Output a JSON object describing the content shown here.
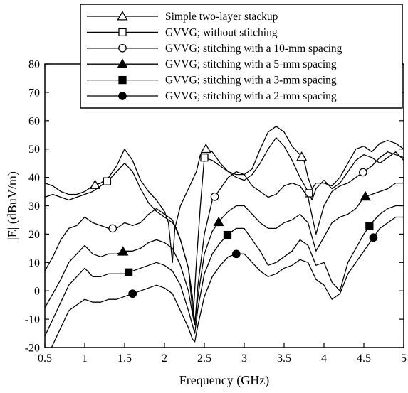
{
  "chart_data": {
    "type": "line",
    "xlabel": "Frequency (GHz)",
    "ylabel": "|E| (dBuV/m)",
    "xlim": [
      0.5,
      5
    ],
    "ylim": [
      -20,
      80
    ],
    "x_ticks": [
      "0.5",
      "1",
      "1.5",
      "2",
      "2.5",
      "3",
      "3.5",
      "4",
      "4.5",
      "5"
    ],
    "y_ticks": [
      "80",
      "70",
      "60",
      "50",
      "40",
      "30",
      "20",
      "10",
      "0",
      "-10",
      "-20"
    ],
    "grid": false,
    "legend_position": "top-right",
    "series": [
      {
        "name": "Simple two-layer stackup",
        "marker": "open-triangle",
        "marker_x": [
          1.13,
          2.52,
          3.72
        ],
        "x": [
          0.5,
          0.6,
          0.7,
          0.8,
          0.9,
          1.0,
          1.1,
          1.2,
          1.3,
          1.4,
          1.5,
          1.6,
          1.7,
          1.8,
          1.9,
          2.0,
          2.05,
          2.1,
          2.13,
          2.2,
          2.3,
          2.4,
          2.45,
          2.5,
          2.52,
          2.6,
          2.7,
          2.8,
          2.9,
          3.0,
          3.1,
          3.2,
          3.3,
          3.4,
          3.5,
          3.6,
          3.7,
          3.75,
          3.8,
          3.85,
          3.9,
          4.0,
          4.1,
          4.2,
          4.3,
          4.4,
          4.5,
          4.6,
          4.7,
          4.8,
          4.9,
          5.0
        ],
        "y": [
          38,
          37,
          35,
          34,
          34,
          35,
          37,
          38,
          40,
          44,
          50,
          46,
          39,
          35,
          32,
          28,
          24,
          10,
          22,
          30,
          36,
          42,
          48,
          50,
          50,
          49,
          45,
          42,
          41,
          41,
          43,
          50,
          56,
          58,
          56,
          51,
          48,
          46,
          40,
          36,
          38,
          38,
          37,
          40,
          45,
          50,
          51,
          49,
          52,
          53,
          52,
          50
        ]
      },
      {
        "name": "GVVG; without stitching",
        "marker": "open-square",
        "marker_x": [
          1.28,
          2.5,
          3.81
        ],
        "x": [
          0.5,
          0.6,
          0.7,
          0.8,
          0.9,
          1.0,
          1.1,
          1.2,
          1.3,
          1.4,
          1.5,
          1.6,
          1.7,
          1.8,
          1.9,
          2.0,
          2.1,
          2.15,
          2.2,
          2.3,
          2.36,
          2.4,
          2.45,
          2.5,
          2.6,
          2.7,
          2.8,
          2.9,
          3.0,
          3.1,
          3.2,
          3.3,
          3.4,
          3.5,
          3.6,
          3.7,
          3.8,
          3.85,
          3.9,
          4.0,
          4.1,
          4.2,
          4.3,
          4.4,
          4.5,
          4.6,
          4.7,
          4.8,
          4.9,
          5.0
        ],
        "y": [
          33,
          34,
          33,
          32,
          33,
          34,
          35,
          37,
          39,
          42,
          45,
          42,
          36,
          31,
          28,
          26,
          24,
          22,
          18,
          8,
          -9,
          10,
          30,
          47,
          46,
          44,
          42,
          40,
          39,
          41,
          45,
          50,
          54,
          51,
          46,
          40,
          35,
          32,
          36,
          39,
          36,
          38,
          42,
          46,
          48,
          47,
          45,
          47,
          49,
          46
        ]
      },
      {
        "name": "GVVG; stitching with a 10-mm spacing",
        "marker": "open-circle",
        "marker_x": [
          1.35,
          2.63,
          4.49
        ],
        "x": [
          0.5,
          0.6,
          0.7,
          0.8,
          0.9,
          1.0,
          1.1,
          1.2,
          1.3,
          1.4,
          1.5,
          1.6,
          1.7,
          1.8,
          1.9,
          2.0,
          2.1,
          2.2,
          2.3,
          2.35,
          2.38,
          2.42,
          2.5,
          2.6,
          2.7,
          2.8,
          2.9,
          3.0,
          3.1,
          3.2,
          3.3,
          3.4,
          3.5,
          3.6,
          3.7,
          3.8,
          3.9,
          4.0,
          4.1,
          4.2,
          4.3,
          4.4,
          4.5,
          4.6,
          4.7,
          4.8,
          4.9,
          5.0
        ],
        "y": [
          7,
          12,
          18,
          22,
          23,
          26,
          24,
          23,
          22,
          22,
          24,
          23,
          24,
          27,
          29,
          27,
          25,
          18,
          8,
          -2,
          -12,
          2,
          20,
          32,
          36,
          40,
          42,
          41,
          37,
          35,
          33,
          34,
          37,
          38,
          37,
          33,
          20,
          30,
          35,
          37,
          38,
          40,
          42,
          44,
          47,
          49,
          48,
          47
        ]
      },
      {
        "name": "GVVG; stitching with a 5-mm spacing",
        "marker": "filled-triangle",
        "marker_x": [
          1.48,
          2.68,
          4.52
        ],
        "x": [
          0.5,
          0.6,
          0.7,
          0.8,
          0.9,
          1.0,
          1.1,
          1.2,
          1.3,
          1.4,
          1.5,
          1.6,
          1.7,
          1.8,
          1.9,
          2.0,
          2.1,
          2.2,
          2.3,
          2.35,
          2.38,
          2.42,
          2.5,
          2.6,
          2.7,
          2.8,
          2.9,
          3.0,
          3.1,
          3.2,
          3.3,
          3.4,
          3.5,
          3.6,
          3.7,
          3.8,
          3.9,
          4.0,
          4.1,
          4.2,
          4.3,
          4.4,
          4.5,
          4.6,
          4.7,
          4.8,
          4.9,
          5.0
        ],
        "y": [
          -6,
          -1,
          4,
          10,
          13,
          16,
          13,
          12,
          13,
          13,
          14,
          14,
          15,
          17,
          18,
          17,
          15,
          9,
          0,
          -8,
          -12,
          -2,
          13,
          21,
          25,
          28,
          30,
          30,
          27,
          24,
          22,
          22,
          24,
          25,
          27,
          24,
          14,
          19,
          24,
          26,
          27,
          29,
          33,
          34,
          35,
          36,
          38,
          38
        ]
      },
      {
        "name": "GVVG; stitching with a 3-mm spacing",
        "marker": "filled-square",
        "marker_x": [
          1.55,
          2.79,
          4.57
        ],
        "x": [
          0.5,
          0.6,
          0.7,
          0.8,
          0.9,
          1.0,
          1.1,
          1.2,
          1.3,
          1.4,
          1.5,
          1.6,
          1.7,
          1.8,
          1.9,
          2.0,
          2.1,
          2.2,
          2.3,
          2.35,
          2.38,
          2.42,
          2.5,
          2.6,
          2.7,
          2.8,
          2.9,
          3.0,
          3.1,
          3.2,
          3.3,
          3.4,
          3.5,
          3.6,
          3.7,
          3.8,
          3.9,
          4.0,
          4.1,
          4.2,
          4.3,
          4.4,
          4.5,
          4.6,
          4.7,
          4.8,
          4.9,
          5.0
        ],
        "y": [
          -16,
          -10,
          -4,
          2,
          5,
          8,
          5,
          5,
          6,
          6,
          6,
          7,
          8,
          9,
          10,
          9,
          7,
          2,
          -7,
          -12,
          -15,
          -6,
          6,
          13,
          17,
          20,
          22,
          22,
          18,
          14,
          9,
          10,
          12,
          14,
          18,
          16,
          9,
          10,
          3,
          0,
          10,
          15,
          20,
          24,
          27,
          29,
          30,
          30
        ]
      },
      {
        "name": "GVVG; stitching with a 2-mm spacing",
        "marker": "filled-circle",
        "marker_x": [
          1.6,
          2.9,
          4.62
        ],
        "x": [
          0.5,
          0.6,
          0.7,
          0.8,
          0.9,
          1.0,
          1.1,
          1.2,
          1.3,
          1.4,
          1.5,
          1.6,
          1.7,
          1.8,
          1.9,
          2.0,
          2.1,
          2.2,
          2.3,
          2.35,
          2.38,
          2.42,
          2.5,
          2.6,
          2.7,
          2.8,
          2.9,
          3.0,
          3.1,
          3.2,
          3.3,
          3.4,
          3.5,
          3.6,
          3.7,
          3.8,
          3.9,
          4.0,
          4.1,
          4.2,
          4.3,
          4.4,
          4.5,
          4.6,
          4.7,
          4.8,
          4.9,
          5.0
        ],
        "y": [
          -25,
          -19,
          -13,
          -7,
          -5,
          -3,
          -4,
          -4,
          -3,
          -3,
          -2,
          -1,
          0,
          1,
          2,
          1,
          -1,
          -7,
          -13,
          -17,
          -18,
          -12,
          -2,
          5,
          9,
          12,
          13,
          13,
          10,
          7,
          5,
          6,
          8,
          9,
          11,
          10,
          4,
          2,
          -3,
          -1,
          6,
          10,
          14,
          18,
          22,
          24,
          26,
          26
        ]
      }
    ]
  }
}
